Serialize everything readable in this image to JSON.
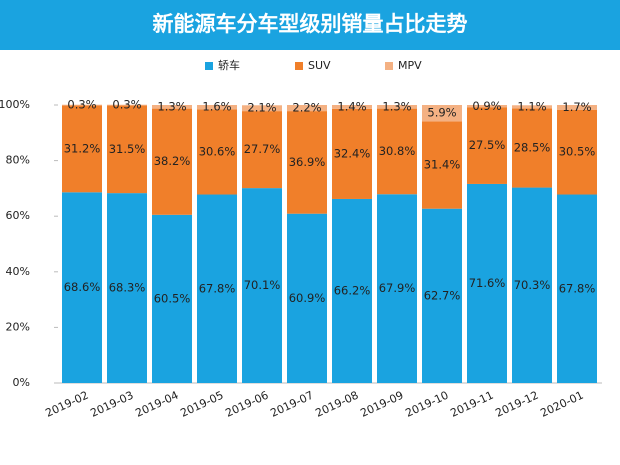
{
  "chart_data": {
    "type": "stacked-bar",
    "title": "新能源车分车型级别销量占比走势",
    "categories": [
      "2019-02",
      "2019-03",
      "2019-04",
      "2019-05",
      "2019-06",
      "2019-07",
      "2019-08",
      "2019-09",
      "2019-10",
      "2019-11",
      "2019-12",
      "2020-01"
    ],
    "series": [
      {
        "name": "轿车",
        "color": "#1aa3e0",
        "values": [
          68.6,
          68.3,
          60.5,
          67.8,
          70.1,
          60.9,
          66.2,
          67.9,
          62.7,
          71.6,
          70.3,
          67.8
        ],
        "value_labels": [
          "68.6%",
          "68.3%",
          "60.5%",
          "67.8%",
          "70.1%",
          "60.9%",
          "66.2%",
          "67.9%",
          "62.7%",
          "71.6%",
          "70.3%",
          "67.8%"
        ]
      },
      {
        "name": "SUV",
        "color": "#f07f2a",
        "values": [
          31.2,
          31.5,
          38.2,
          30.6,
          27.7,
          36.9,
          32.4,
          30.8,
          31.4,
          27.5,
          28.5,
          30.5
        ],
        "value_labels": [
          "31.2%",
          "31.5%",
          "38.2%",
          "30.6%",
          "27.7%",
          "36.9%",
          "32.4%",
          "30.8%",
          "31.4%",
          "27.5%",
          "28.5%",
          "30.5%"
        ]
      },
      {
        "name": "MPV",
        "color": "#f4b183",
        "values": [
          0.3,
          0.3,
          1.3,
          1.6,
          2.1,
          2.2,
          1.4,
          1.3,
          5.9,
          0.9,
          1.1,
          1.7
        ],
        "value_labels": [
          "0.3%",
          "0.3%",
          "1.3%",
          "1.6%",
          "2.1%",
          "2.2%",
          "1.4%",
          "1.3%",
          "5.9%",
          "0.9%",
          "1.1%",
          "1.7%"
        ]
      }
    ],
    "ylim": [
      0,
      100
    ],
    "yticks": [
      {
        "value": 0,
        "label": "0%"
      },
      {
        "value": 20,
        "label": "20%"
      },
      {
        "value": 40,
        "label": "40%"
      },
      {
        "value": 60,
        "label": "60%"
      },
      {
        "value": 80,
        "label": "80%"
      },
      {
        "value": 100,
        "label": "100%"
      }
    ],
    "legend": "top"
  }
}
